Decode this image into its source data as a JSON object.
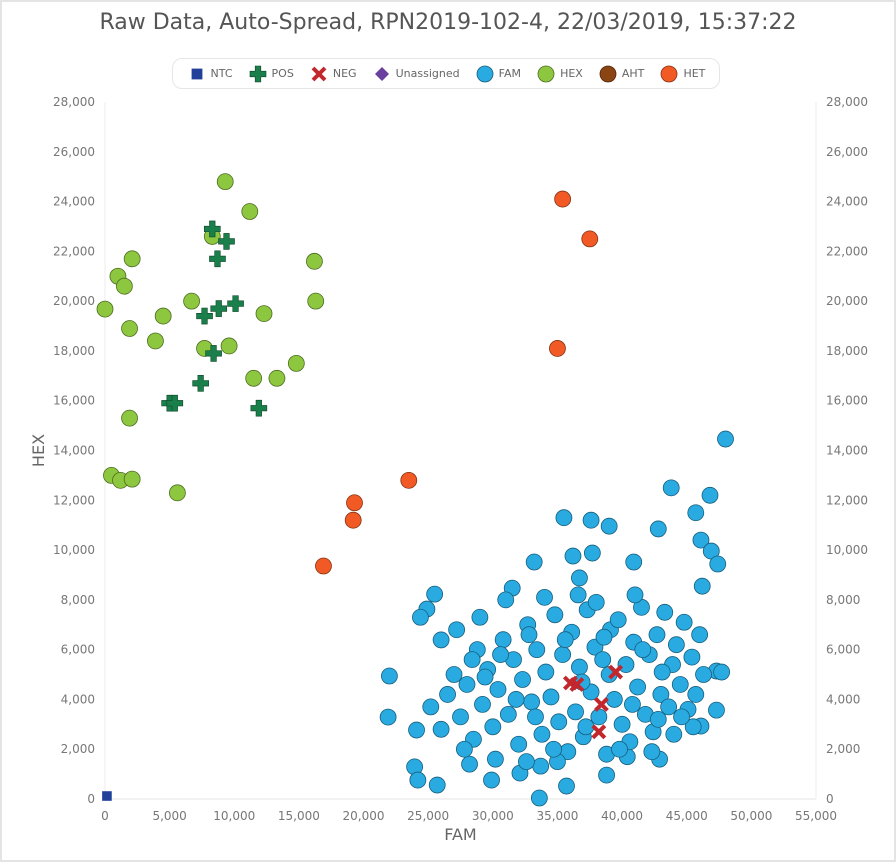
{
  "chart_data": {
    "type": "scatter",
    "title": "Raw Data, Auto-Spread, RPN2019-102-4, 22/03/2019, 15:37:22",
    "xlabel": "FAM",
    "ylabel": "HEX",
    "xlim": [
      0,
      55000
    ],
    "ylim": [
      0,
      28000
    ],
    "x_ticks": [
      "0",
      "5,000",
      "10,000",
      "15,000",
      "20,000",
      "25,000",
      "30,000",
      "35,000",
      "40,000",
      "45,000",
      "50,000",
      "55,000"
    ],
    "y_ticks": [
      "0",
      "2,000",
      "4,000",
      "6,000",
      "8,000",
      "10,000",
      "12,000",
      "14,000",
      "16,000",
      "18,000",
      "20,000",
      "22,000",
      "24,000",
      "26,000",
      "28,000"
    ],
    "grid": false,
    "legend_position": "top-center",
    "series": [
      {
        "name": "NTC",
        "marker": "square",
        "color": "#21409a",
        "points": [
          [
            150,
            120
          ]
        ]
      },
      {
        "name": "POS",
        "marker": "plus",
        "color": "#1a7f4a",
        "points": [
          [
            8300,
            22900
          ],
          [
            9400,
            22400
          ],
          [
            8700,
            21700
          ],
          [
            8800,
            19700
          ],
          [
            10100,
            19900
          ],
          [
            7700,
            19400
          ],
          [
            8400,
            17900
          ],
          [
            7400,
            16700
          ],
          [
            5000,
            15900
          ],
          [
            5400,
            15900
          ],
          [
            11900,
            15700
          ]
        ]
      },
      {
        "name": "NEG",
        "marker": "x",
        "color": "#c1272d",
        "points": [
          [
            36000,
            4660
          ],
          [
            36500,
            4600
          ],
          [
            39500,
            5100
          ],
          [
            38400,
            3800
          ],
          [
            38200,
            2700
          ]
        ]
      },
      {
        "name": "Unassigned",
        "marker": "diamond",
        "color": "#6b3fa0",
        "points": []
      },
      {
        "name": "FAM",
        "marker": "circle",
        "color": "#29abe2",
        "points": [
          [
            48000,
            14460
          ],
          [
            46800,
            12200
          ],
          [
            43800,
            12500
          ],
          [
            35500,
            11300
          ],
          [
            37600,
            11200
          ],
          [
            39000,
            10960
          ],
          [
            42800,
            10850
          ],
          [
            45700,
            11500
          ],
          [
            46100,
            10400
          ],
          [
            46900,
            9960
          ],
          [
            47400,
            9440
          ],
          [
            33200,
            9520
          ],
          [
            36200,
            9760
          ],
          [
            37700,
            9880
          ],
          [
            40900,
            9520
          ],
          [
            46200,
            8550
          ],
          [
            36700,
            8880
          ],
          [
            31500,
            8470
          ],
          [
            25500,
            8230
          ],
          [
            24900,
            7630
          ],
          [
            24400,
            7300
          ],
          [
            26000,
            6390
          ],
          [
            22000,
            4940
          ],
          [
            21900,
            3290
          ],
          [
            24100,
            2770
          ],
          [
            23950,
            1290
          ],
          [
            24200,
            760
          ],
          [
            25700,
            560
          ],
          [
            29900,
            760
          ],
          [
            33600,
            40
          ],
          [
            35700,
            520
          ],
          [
            38800,
            960
          ],
          [
            32100,
            1040
          ],
          [
            33700,
            1320
          ],
          [
            42900,
            1600
          ],
          [
            40400,
            1700
          ],
          [
            47300,
            3570
          ],
          [
            46100,
            2930
          ],
          [
            47300,
            5140
          ],
          [
            47700,
            5100
          ],
          [
            26500,
            4200
          ],
          [
            27000,
            5000
          ],
          [
            27500,
            3300
          ],
          [
            28000,
            4600
          ],
          [
            28500,
            2400
          ],
          [
            28800,
            6000
          ],
          [
            29200,
            3800
          ],
          [
            29600,
            5200
          ],
          [
            30000,
            2900
          ],
          [
            30400,
            4400
          ],
          [
            30800,
            6400
          ],
          [
            31200,
            3400
          ],
          [
            31600,
            5600
          ],
          [
            32000,
            2200
          ],
          [
            32300,
            4800
          ],
          [
            32700,
            7000
          ],
          [
            33000,
            3900
          ],
          [
            33400,
            6000
          ],
          [
            33800,
            2600
          ],
          [
            34100,
            5100
          ],
          [
            34500,
            4100
          ],
          [
            34800,
            7400
          ],
          [
            35100,
            3100
          ],
          [
            35400,
            5800
          ],
          [
            35800,
            1900
          ],
          [
            36100,
            6700
          ],
          [
            36400,
            3500
          ],
          [
            36700,
            5300
          ],
          [
            37000,
            2500
          ],
          [
            37300,
            7600
          ],
          [
            37600,
            4300
          ],
          [
            37900,
            6100
          ],
          [
            38200,
            3300
          ],
          [
            38500,
            5600
          ],
          [
            38800,
            1800
          ],
          [
            39100,
            6800
          ],
          [
            39400,
            4000
          ],
          [
            39700,
            7200
          ],
          [
            40000,
            3000
          ],
          [
            40300,
            5400
          ],
          [
            40600,
            2300
          ],
          [
            40900,
            6300
          ],
          [
            41200,
            4500
          ],
          [
            41500,
            7700
          ],
          [
            41800,
            3400
          ],
          [
            42100,
            5800
          ],
          [
            42400,
            2700
          ],
          [
            42700,
            6600
          ],
          [
            43000,
            4200
          ],
          [
            43300,
            7500
          ],
          [
            43600,
            3700
          ],
          [
            43900,
            5400
          ],
          [
            44200,
            6200
          ],
          [
            44500,
            4600
          ],
          [
            44800,
            7100
          ],
          [
            45100,
            3600
          ],
          [
            45400,
            5700
          ],
          [
            45700,
            4200
          ],
          [
            46000,
            6600
          ],
          [
            46300,
            5000
          ],
          [
            27200,
            6800
          ],
          [
            28200,
            1400
          ],
          [
            29000,
            7300
          ],
          [
            30200,
            1600
          ],
          [
            31000,
            8000
          ],
          [
            32600,
            1500
          ],
          [
            34000,
            8100
          ],
          [
            35000,
            1500
          ],
          [
            36600,
            8200
          ],
          [
            38000,
            7900
          ],
          [
            39800,
            2000
          ],
          [
            41000,
            8200
          ],
          [
            42300,
            1900
          ],
          [
            44000,
            2600
          ],
          [
            45500,
            2900
          ],
          [
            26000,
            2800
          ],
          [
            25200,
            3700
          ],
          [
            27800,
            2000
          ],
          [
            29400,
            4900
          ],
          [
            33300,
            3300
          ],
          [
            34700,
            2000
          ],
          [
            36900,
            4700
          ],
          [
            39000,
            5000
          ],
          [
            40800,
            3800
          ],
          [
            43100,
            5100
          ],
          [
            44600,
            3300
          ],
          [
            30600,
            5800
          ],
          [
            32800,
            6600
          ],
          [
            35600,
            6400
          ],
          [
            38600,
            6500
          ],
          [
            41600,
            6000
          ],
          [
            37200,
            2900
          ],
          [
            31800,
            4000
          ],
          [
            28400,
            5600
          ],
          [
            42800,
            3200
          ]
        ]
      },
      {
        "name": "HEX",
        "marker": "circle",
        "color": "#8dc63f",
        "points": [
          [
            0,
            19680
          ],
          [
            1000,
            21000
          ],
          [
            1500,
            20600
          ],
          [
            2100,
            21700
          ],
          [
            1900,
            18900
          ],
          [
            1900,
            15300
          ],
          [
            500,
            13000
          ],
          [
            1200,
            12800
          ],
          [
            2100,
            12850
          ],
          [
            3900,
            18400
          ],
          [
            4500,
            19400
          ],
          [
            5600,
            12300
          ],
          [
            6700,
            20000
          ],
          [
            7700,
            18100
          ],
          [
            8300,
            22600
          ],
          [
            9300,
            24800
          ],
          [
            9600,
            18200
          ],
          [
            11200,
            23600
          ],
          [
            11500,
            16900
          ],
          [
            12300,
            19500
          ],
          [
            13300,
            16900
          ],
          [
            14800,
            17500
          ],
          [
            16200,
            21600
          ],
          [
            16300,
            20000
          ]
        ]
      },
      {
        "name": "AHT",
        "marker": "circle",
        "color": "#8b4513",
        "points": []
      },
      {
        "name": "HET",
        "marker": "circle",
        "color": "#f15a24",
        "points": [
          [
            35400,
            24100
          ],
          [
            37500,
            22500
          ],
          [
            35000,
            18100
          ],
          [
            23500,
            12800
          ],
          [
            19300,
            11900
          ],
          [
            19200,
            11200
          ],
          [
            16900,
            9360
          ]
        ]
      }
    ]
  }
}
